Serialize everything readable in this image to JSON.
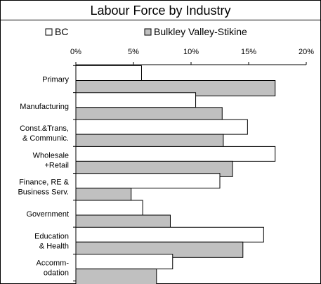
{
  "chart_data": {
    "type": "bar",
    "orientation": "horizontal",
    "title": "Labour Force by Industry",
    "categories": [
      [
        "Primary"
      ],
      [
        "Manufacturing"
      ],
      [
        "Const.&Trans,",
        "& Communic."
      ],
      [
        "Wholesale",
        "+Retail"
      ],
      [
        "Finance, RE &",
        "Business Serv."
      ],
      [
        "Government"
      ],
      [
        "Education",
        "& Health"
      ],
      [
        "Accomm-",
        "odation"
      ]
    ],
    "series": [
      {
        "name": "BC",
        "color": "#ffffff",
        "values": [
          5.7,
          10.4,
          14.9,
          17.3,
          12.5,
          5.8,
          16.3,
          8.4
        ]
      },
      {
        "name": "Bulkley Valley-Stikine",
        "color": "#c0c0c0",
        "values": [
          17.3,
          12.7,
          12.8,
          13.6,
          4.8,
          8.2,
          14.5,
          7.0
        ]
      }
    ],
    "xlim": [
      0,
      20
    ],
    "ticks": [
      "0%",
      "5%",
      "10%",
      "15%",
      "20%"
    ],
    "tick_values": [
      0,
      5,
      10,
      15,
      20
    ],
    "legend": "top",
    "grid": false
  }
}
